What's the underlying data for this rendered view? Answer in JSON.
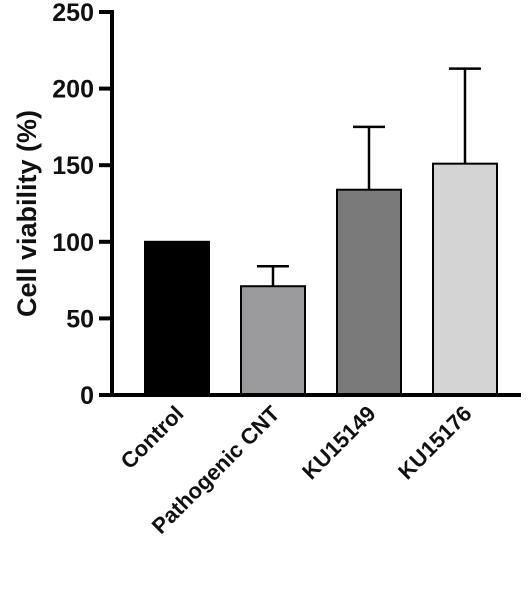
{
  "chart_data": {
    "type": "bar",
    "title": "",
    "xlabel": "",
    "ylabel": "Cell viability (%)",
    "ylim": [
      0,
      250
    ],
    "yticks": [
      0,
      50,
      100,
      150,
      200,
      250
    ],
    "grid": false,
    "categories": [
      "Control",
      "Pathogenic CNT",
      "KU15149",
      "KU15176"
    ],
    "values": [
      100,
      71,
      134,
      151
    ],
    "error_upper": [
      0,
      13,
      41,
      62
    ],
    "colors": [
      "#000000",
      "#9b9b9d",
      "#7a7a7a",
      "#d4d4d4"
    ]
  }
}
